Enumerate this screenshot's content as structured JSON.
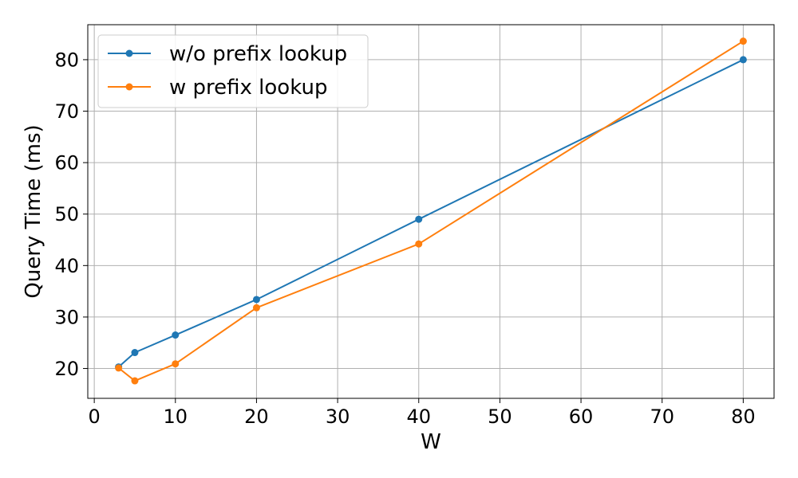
{
  "chart_data": {
    "type": "line",
    "title": "",
    "xlabel": "W",
    "ylabel": "Query Time (ms)",
    "xlim": [
      -0.8,
      83.8
    ],
    "ylim": [
      14.2,
      86.8
    ],
    "xticks": [
      0,
      10,
      20,
      30,
      40,
      50,
      60,
      70,
      80
    ],
    "yticks": [
      20,
      30,
      40,
      50,
      60,
      70,
      80
    ],
    "grid": true,
    "legend_position": "top-left",
    "x": [
      3,
      5,
      10,
      20,
      40,
      80
    ],
    "series": [
      {
        "name": "w/o prefix lookup",
        "color": "#1f77b4",
        "marker": "circle",
        "values": [
          20.3,
          23.1,
          26.5,
          33.4,
          49.0,
          80.0
        ]
      },
      {
        "name": "w prefix lookup",
        "color": "#ff7f0e",
        "marker": "circle",
        "values": [
          20.1,
          17.6,
          20.9,
          31.8,
          44.2,
          83.6
        ]
      }
    ]
  }
}
